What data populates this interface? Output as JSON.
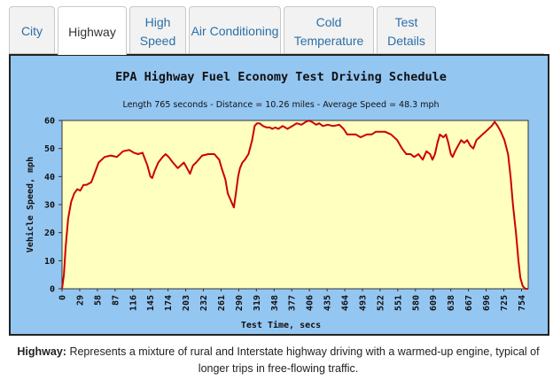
{
  "tabs": [
    {
      "label": "City",
      "active": false
    },
    {
      "label": "Highway",
      "active": true
    },
    {
      "label": "High Speed",
      "active": false
    },
    {
      "label": "Air Conditioning",
      "active": false
    },
    {
      "label": "Cold Temperature",
      "active": false
    },
    {
      "label": "Test Details",
      "active": false
    }
  ],
  "caption": {
    "term": "Highway:",
    "text": "Represents a mixture of rural and Interstate highway driving with a warmed-up engine, typical of longer trips in free-flowing traffic."
  },
  "colors": {
    "frame_background": "#94c6f2",
    "plot_background": "#ffffc0",
    "line": "#cc0000",
    "tab_link": "#2a6fa8"
  },
  "chart_data": {
    "type": "line",
    "title": "EPA Highway Fuel Economy Test Driving Schedule",
    "subtitle": "Length 765 seconds - Distance = 10.26 miles - Average Speed = 48.3 mph",
    "xlabel": "Test Time, secs",
    "ylabel": "Vehicle Speed, mph",
    "xlim": [
      0,
      765
    ],
    "ylim": [
      0,
      60
    ],
    "x_ticks": [
      0,
      29,
      58,
      87,
      116,
      145,
      174,
      203,
      232,
      261,
      290,
      319,
      348,
      377,
      406,
      435,
      464,
      493,
      522,
      551,
      580,
      609,
      638,
      667,
      696,
      725,
      754
    ],
    "y_ticks": [
      0,
      10,
      20,
      30,
      40,
      50,
      60
    ],
    "grid": false,
    "legend": "none",
    "series": [
      {
        "x": [
          0,
          3,
          6,
          10,
          15,
          20,
          25,
          30,
          35,
          40,
          48,
          55,
          60,
          70,
          80,
          90,
          100,
          110,
          118,
          125,
          132,
          140,
          145,
          148,
          152,
          158,
          165,
          170,
          175,
          182,
          190,
          195,
          200,
          205,
          210,
          215,
          220,
          230,
          240,
          250,
          258,
          262,
          268,
          272,
          278,
          282,
          286,
          289,
          292,
          296,
          300,
          306,
          312,
          316,
          320,
          324,
          330,
          336,
          341,
          345,
          350,
          355,
          362,
          370,
          378,
          385,
          393,
          400,
          405,
          410,
          417,
          422,
          428,
          436,
          445,
          455,
          462,
          468,
          474,
          482,
          490,
          500,
          508,
          515,
          522,
          530,
          540,
          550,
          558,
          565,
          572,
          578,
          585,
          592,
          598,
          604,
          608,
          612,
          616,
          620,
          626,
          630,
          634,
          638,
          641,
          645,
          650,
          655,
          660,
          665,
          670,
          675,
          680,
          685,
          690,
          695,
          700,
          705,
          710,
          715,
          720,
          726,
          732,
          736,
          740,
          745,
          749,
          752,
          756,
          760,
          765
        ],
        "y": [
          0,
          5,
          15,
          25,
          31,
          34,
          35.5,
          35,
          37,
          37,
          38,
          42,
          45,
          47,
          47.5,
          47,
          49,
          49.5,
          48.5,
          48,
          48.5,
          44,
          40,
          39.5,
          42,
          45,
          47,
          48,
          47,
          45,
          43,
          44,
          45,
          43,
          41,
          44,
          45,
          47.5,
          48,
          48,
          46,
          43,
          39,
          34,
          31,
          29,
          35,
          40,
          43,
          45,
          46,
          48,
          53,
          58,
          59,
          59,
          58,
          57.5,
          57.5,
          57,
          57.5,
          57,
          58,
          57,
          58,
          59,
          58.5,
          59.5,
          60,
          59.5,
          58.5,
          59,
          58,
          58.5,
          58,
          58.5,
          57,
          55,
          55,
          55,
          54,
          55,
          55,
          56,
          56,
          56,
          55,
          53,
          50,
          48,
          48,
          47,
          48,
          46,
          49,
          48,
          46,
          48,
          52,
          55,
          54,
          55,
          52,
          48,
          47,
          49,
          51,
          53,
          52,
          53,
          51,
          50,
          53,
          54,
          55,
          56,
          57,
          58,
          59.5,
          58,
          56,
          53,
          48,
          40,
          30,
          20,
          10,
          4,
          1,
          0,
          0
        ]
      }
    ]
  }
}
